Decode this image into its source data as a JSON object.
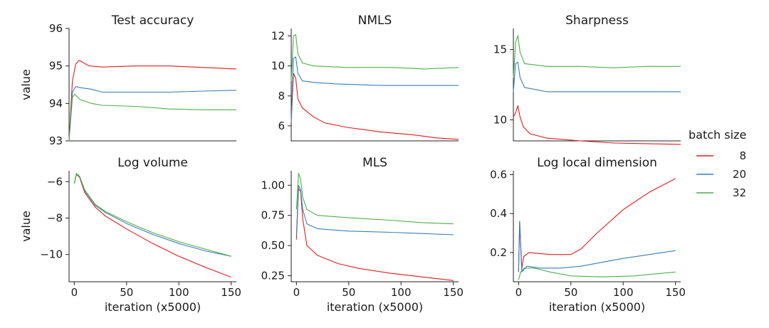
{
  "figure": {
    "legend_title": "batch size"
  },
  "series_info": [
    {
      "name": "8",
      "color": "#e41a1c"
    },
    {
      "name": "20",
      "color": "#377eb8"
    },
    {
      "name": "32",
      "color": "#4daf4a"
    }
  ],
  "chart_data": [
    {
      "type": "line",
      "title": "Test accuracy",
      "ylabel": "value",
      "xlabel": "",
      "xlim": [
        0,
        150
      ],
      "ylim": [
        93,
        96
      ],
      "yticks": [
        93,
        94,
        95,
        96
      ],
      "xticks": [],
      "series": [
        {
          "name": "8",
          "points": [
            [
              0,
              93.0
            ],
            [
              3,
              94.6
            ],
            [
              6,
              95.05
            ],
            [
              9,
              95.15
            ],
            [
              12,
              95.1
            ],
            [
              18,
              95.0
            ],
            [
              30,
              94.97
            ],
            [
              60,
              95.0
            ],
            [
              90,
              95.0
            ],
            [
              120,
              94.96
            ],
            [
              150,
              94.92
            ]
          ]
        },
        {
          "name": "20",
          "points": [
            [
              0,
              93.0
            ],
            [
              3,
              94.3
            ],
            [
              6,
              94.45
            ],
            [
              10,
              94.42
            ],
            [
              20,
              94.38
            ],
            [
              30,
              94.3
            ],
            [
              60,
              94.3
            ],
            [
              90,
              94.3
            ],
            [
              120,
              94.33
            ],
            [
              150,
              94.35
            ]
          ]
        },
        {
          "name": "32",
          "points": [
            [
              0,
              93.0
            ],
            [
              3,
              94.15
            ],
            [
              5,
              94.25
            ],
            [
              10,
              94.1
            ],
            [
              20,
              94.0
            ],
            [
              30,
              93.95
            ],
            [
              60,
              93.92
            ],
            [
              90,
              93.85
            ],
            [
              120,
              93.83
            ],
            [
              150,
              93.83
            ]
          ]
        }
      ]
    },
    {
      "type": "line",
      "title": "NMLS",
      "ylabel": "",
      "xlabel": "",
      "xlim": [
        0,
        150
      ],
      "ylim": [
        5,
        12.5
      ],
      "yticks": [
        6,
        8,
        10,
        12
      ],
      "xticks": [],
      "series": [
        {
          "name": "8",
          "points": [
            [
              0,
              6.2
            ],
            [
              2,
              9.5
            ],
            [
              4,
              9.2
            ],
            [
              6,
              7.8
            ],
            [
              10,
              7.2
            ],
            [
              20,
              6.6
            ],
            [
              30,
              6.2
            ],
            [
              50,
              5.9
            ],
            [
              80,
              5.6
            ],
            [
              110,
              5.4
            ],
            [
              130,
              5.2
            ],
            [
              150,
              5.1
            ]
          ]
        },
        {
          "name": "20",
          "points": [
            [
              0,
              6.3
            ],
            [
              2,
              10.5
            ],
            [
              4,
              10.6
            ],
            [
              6,
              9.5
            ],
            [
              10,
              9.0
            ],
            [
              20,
              8.9
            ],
            [
              40,
              8.8
            ],
            [
              80,
              8.7
            ],
            [
              120,
              8.7
            ],
            [
              150,
              8.7
            ]
          ]
        },
        {
          "name": "32",
          "points": [
            [
              0,
              9.0
            ],
            [
              2,
              12.0
            ],
            [
              4,
              12.1
            ],
            [
              6,
              10.8
            ],
            [
              10,
              10.2
            ],
            [
              20,
              10.0
            ],
            [
              50,
              9.9
            ],
            [
              90,
              9.9
            ],
            [
              120,
              9.8
            ],
            [
              150,
              9.9
            ]
          ]
        }
      ]
    },
    {
      "type": "line",
      "title": "Sharpness",
      "ylabel": "",
      "xlabel": "",
      "xlim": [
        0,
        150
      ],
      "ylim": [
        8.5,
        16.5
      ],
      "yticks": [
        10,
        15
      ],
      "xticks": [],
      "series": [
        {
          "name": "8",
          "points": [
            [
              0,
              10.2
            ],
            [
              2,
              10.5
            ],
            [
              4,
              11.0
            ],
            [
              6,
              10.2
            ],
            [
              9,
              9.5
            ],
            [
              15,
              9.0
            ],
            [
              30,
              8.7
            ],
            [
              60,
              8.5
            ],
            [
              90,
              8.35
            ],
            [
              120,
              8.3
            ],
            [
              150,
              8.25
            ]
          ]
        },
        {
          "name": "20",
          "points": [
            [
              0,
              12.0
            ],
            [
              2,
              14.0
            ],
            [
              4,
              14.1
            ],
            [
              6,
              13.0
            ],
            [
              10,
              12.3
            ],
            [
              30,
              12.0
            ],
            [
              60,
              12.0
            ],
            [
              90,
              12.0
            ],
            [
              120,
              12.0
            ],
            [
              150,
              12.0
            ]
          ]
        },
        {
          "name": "32",
          "points": [
            [
              0,
              13.0
            ],
            [
              2,
              15.5
            ],
            [
              4,
              16.0
            ],
            [
              6,
              14.8
            ],
            [
              10,
              14.0
            ],
            [
              30,
              13.8
            ],
            [
              60,
              13.8
            ],
            [
              90,
              13.7
            ],
            [
              120,
              13.8
            ],
            [
              150,
              13.8
            ]
          ]
        }
      ]
    },
    {
      "type": "line",
      "title": "Log volume",
      "ylabel": "value",
      "xlabel": "iteration (x5000)",
      "xlim": [
        -5,
        155
      ],
      "ylim": [
        -11.5,
        -5.4
      ],
      "yticks": [
        -10,
        -8,
        -6
      ],
      "xticks": [
        0,
        50,
        100,
        150
      ],
      "series": [
        {
          "name": "8",
          "points": [
            [
              0,
              -6.1
            ],
            [
              2,
              -5.6
            ],
            [
              5,
              -5.75
            ],
            [
              10,
              -6.6
            ],
            [
              20,
              -7.4
            ],
            [
              30,
              -7.9
            ],
            [
              50,
              -8.6
            ],
            [
              75,
              -9.4
            ],
            [
              100,
              -10.1
            ],
            [
              125,
              -10.7
            ],
            [
              150,
              -11.25
            ]
          ]
        },
        {
          "name": "20",
          "points": [
            [
              0,
              -6.1
            ],
            [
              2,
              -5.6
            ],
            [
              5,
              -5.7
            ],
            [
              10,
              -6.5
            ],
            [
              20,
              -7.3
            ],
            [
              30,
              -7.7
            ],
            [
              50,
              -8.3
            ],
            [
              75,
              -8.9
            ],
            [
              100,
              -9.4
            ],
            [
              125,
              -9.8
            ],
            [
              150,
              -10.1
            ]
          ]
        },
        {
          "name": "32",
          "points": [
            [
              0,
              -6.1
            ],
            [
              2,
              -5.55
            ],
            [
              5,
              -5.7
            ],
            [
              10,
              -6.45
            ],
            [
              20,
              -7.25
            ],
            [
              30,
              -7.65
            ],
            [
              50,
              -8.2
            ],
            [
              75,
              -8.8
            ],
            [
              100,
              -9.3
            ],
            [
              125,
              -9.7
            ],
            [
              150,
              -10.1
            ]
          ]
        }
      ]
    },
    {
      "type": "line",
      "title": "MLS",
      "ylabel": "",
      "xlabel": "iteration (x5000)",
      "xlim": [
        -5,
        155
      ],
      "ylim": [
        0.2,
        1.12
      ],
      "yticks": [
        0.25,
        0.5,
        0.75,
        1.0
      ],
      "ytick_labels": [
        "0.25",
        "0.50",
        "0.75",
        "1.00"
      ],
      "xticks": [
        0,
        50,
        100,
        150
      ],
      "series": [
        {
          "name": "8",
          "points": [
            [
              0,
              0.55
            ],
            [
              2,
              0.97
            ],
            [
              4,
              0.95
            ],
            [
              6,
              0.72
            ],
            [
              10,
              0.5
            ],
            [
              20,
              0.42
            ],
            [
              40,
              0.35
            ],
            [
              60,
              0.31
            ],
            [
              90,
              0.27
            ],
            [
              120,
              0.24
            ],
            [
              150,
              0.21
            ]
          ]
        },
        {
          "name": "20",
          "points": [
            [
              0,
              0.58
            ],
            [
              2,
              1.0
            ],
            [
              4,
              0.96
            ],
            [
              6,
              0.8
            ],
            [
              10,
              0.68
            ],
            [
              20,
              0.64
            ],
            [
              50,
              0.62
            ],
            [
              90,
              0.61
            ],
            [
              120,
              0.6
            ],
            [
              150,
              0.59
            ]
          ]
        },
        {
          "name": "32",
          "points": [
            [
              0,
              0.8
            ],
            [
              2,
              1.1
            ],
            [
              4,
              1.05
            ],
            [
              6,
              0.9
            ],
            [
              10,
              0.8
            ],
            [
              20,
              0.75
            ],
            [
              50,
              0.73
            ],
            [
              90,
              0.71
            ],
            [
              120,
              0.69
            ],
            [
              150,
              0.68
            ]
          ]
        }
      ]
    },
    {
      "type": "line",
      "title": "Log local dimension",
      "ylabel": "",
      "xlabel": "iteration (x5000)",
      "xlim": [
        -5,
        155
      ],
      "ylim": [
        0.05,
        0.62
      ],
      "yticks": [
        0.2,
        0.4,
        0.6
      ],
      "ytick_labels": [
        "0.2",
        "0.4",
        "0.6"
      ],
      "xticks": [
        0,
        50,
        100,
        150
      ],
      "series": [
        {
          "name": "8",
          "points": [
            [
              0,
              0.1
            ],
            [
              1,
              0.36
            ],
            [
              3,
              0.12
            ],
            [
              5,
              0.18
            ],
            [
              10,
              0.2
            ],
            [
              30,
              0.19
            ],
            [
              50,
              0.19
            ],
            [
              60,
              0.22
            ],
            [
              75,
              0.3
            ],
            [
              100,
              0.42
            ],
            [
              125,
              0.51
            ],
            [
              150,
              0.58
            ]
          ]
        },
        {
          "name": "20",
          "points": [
            [
              0,
              0.1
            ],
            [
              1,
              0.36
            ],
            [
              3,
              0.1
            ],
            [
              8,
              0.13
            ],
            [
              20,
              0.12
            ],
            [
              40,
              0.12
            ],
            [
              60,
              0.13
            ],
            [
              80,
              0.15
            ],
            [
              100,
              0.17
            ],
            [
              125,
              0.19
            ],
            [
              150,
              0.21
            ]
          ]
        },
        {
          "name": "32",
          "points": [
            [
              0,
              0.06
            ],
            [
              2,
              0.1
            ],
            [
              5,
              0.12
            ],
            [
              15,
              0.12
            ],
            [
              30,
              0.1
            ],
            [
              50,
              0.08
            ],
            [
              80,
              0.075
            ],
            [
              110,
              0.08
            ],
            [
              130,
              0.09
            ],
            [
              150,
              0.1
            ]
          ]
        }
      ]
    }
  ]
}
